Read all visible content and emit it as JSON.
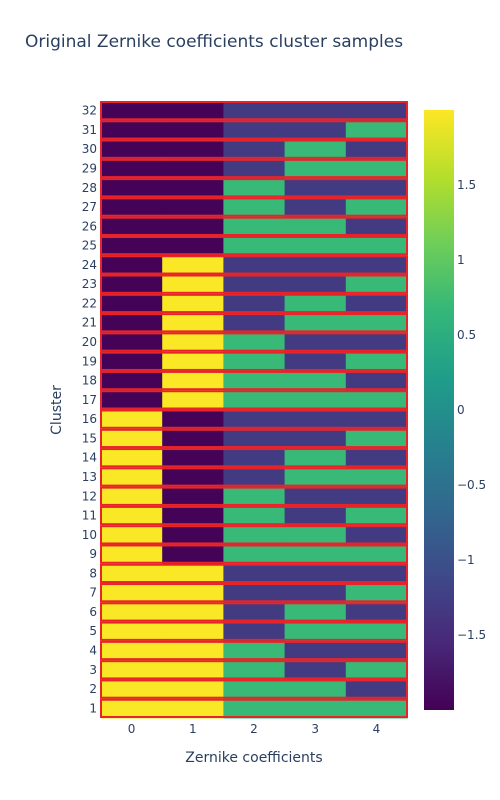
{
  "chart_data": {
    "type": "heatmap",
    "title": "Original Zernike coefficients cluster samples",
    "xlabel": "Zernike coefficients",
    "ylabel": "Cluster",
    "x": [
      0,
      1,
      2,
      3,
      4
    ],
    "y": [
      1,
      2,
      3,
      4,
      5,
      6,
      7,
      8,
      9,
      10,
      11,
      12,
      13,
      14,
      15,
      16,
      17,
      18,
      19,
      20,
      21,
      22,
      23,
      24,
      25,
      26,
      27,
      28,
      29,
      30,
      31,
      32
    ],
    "zlim": [
      -2,
      2
    ],
    "colorscale": "Viridis",
    "colorbar_ticks": [
      1.5,
      1,
      0.5,
      0,
      -0.5,
      -1,
      -1.5
    ],
    "colorbar_tick_labels": [
      "1.5",
      "1",
      "0.5",
      "0",
      "−0.5",
      "−1",
      "−1.5"
    ],
    "cell_outline_color": "#e8242b",
    "z": [
      [
        1.98,
        1.98,
        0.7,
        0.7,
        0.7
      ],
      [
        1.98,
        1.98,
        0.7,
        0.7,
        -1.3
      ],
      [
        1.98,
        1.98,
        0.7,
        -1.3,
        0.7
      ],
      [
        1.98,
        1.98,
        0.7,
        -1.3,
        -1.3
      ],
      [
        1.98,
        1.98,
        -1.3,
        0.7,
        0.7
      ],
      [
        1.98,
        1.98,
        -1.3,
        0.7,
        -1.3
      ],
      [
        1.98,
        1.98,
        -1.3,
        -1.3,
        0.7
      ],
      [
        1.98,
        1.98,
        -1.3,
        -1.3,
        -1.3
      ],
      [
        1.98,
        -1.98,
        0.7,
        0.7,
        0.7
      ],
      [
        1.98,
        -1.98,
        0.7,
        0.7,
        -1.3
      ],
      [
        1.98,
        -1.98,
        0.7,
        -1.3,
        0.7
      ],
      [
        1.98,
        -1.98,
        0.7,
        -1.3,
        -1.3
      ],
      [
        1.98,
        -1.98,
        -1.3,
        0.7,
        0.7
      ],
      [
        1.98,
        -1.98,
        -1.3,
        0.7,
        -1.3
      ],
      [
        1.98,
        -1.98,
        -1.3,
        -1.3,
        0.7
      ],
      [
        1.98,
        -1.98,
        -1.3,
        -1.3,
        -1.3
      ],
      [
        -1.98,
        1.98,
        0.7,
        0.7,
        0.7
      ],
      [
        -1.98,
        1.98,
        0.7,
        0.7,
        -1.3
      ],
      [
        -1.98,
        1.98,
        0.7,
        -1.3,
        0.7
      ],
      [
        -1.98,
        1.98,
        0.7,
        -1.3,
        -1.3
      ],
      [
        -1.98,
        1.98,
        -1.3,
        0.7,
        0.7
      ],
      [
        -1.98,
        1.98,
        -1.3,
        0.7,
        -1.3
      ],
      [
        -1.98,
        1.98,
        -1.3,
        -1.3,
        0.7
      ],
      [
        -1.98,
        1.98,
        -1.3,
        -1.3,
        -1.3
      ],
      [
        -1.98,
        -1.98,
        0.7,
        0.7,
        0.7
      ],
      [
        -1.98,
        -1.98,
        0.7,
        0.7,
        -1.3
      ],
      [
        -1.98,
        -1.98,
        0.7,
        -1.3,
        0.7
      ],
      [
        -1.98,
        -1.98,
        0.7,
        -1.3,
        -1.3
      ],
      [
        -1.98,
        -1.98,
        -1.3,
        0.7,
        0.7
      ],
      [
        -1.98,
        -1.98,
        -1.3,
        0.7,
        -1.3
      ],
      [
        -1.98,
        -1.98,
        -1.3,
        -1.3,
        0.7
      ],
      [
        -1.98,
        -1.98,
        -1.3,
        -1.3,
        -1.3
      ]
    ]
  }
}
